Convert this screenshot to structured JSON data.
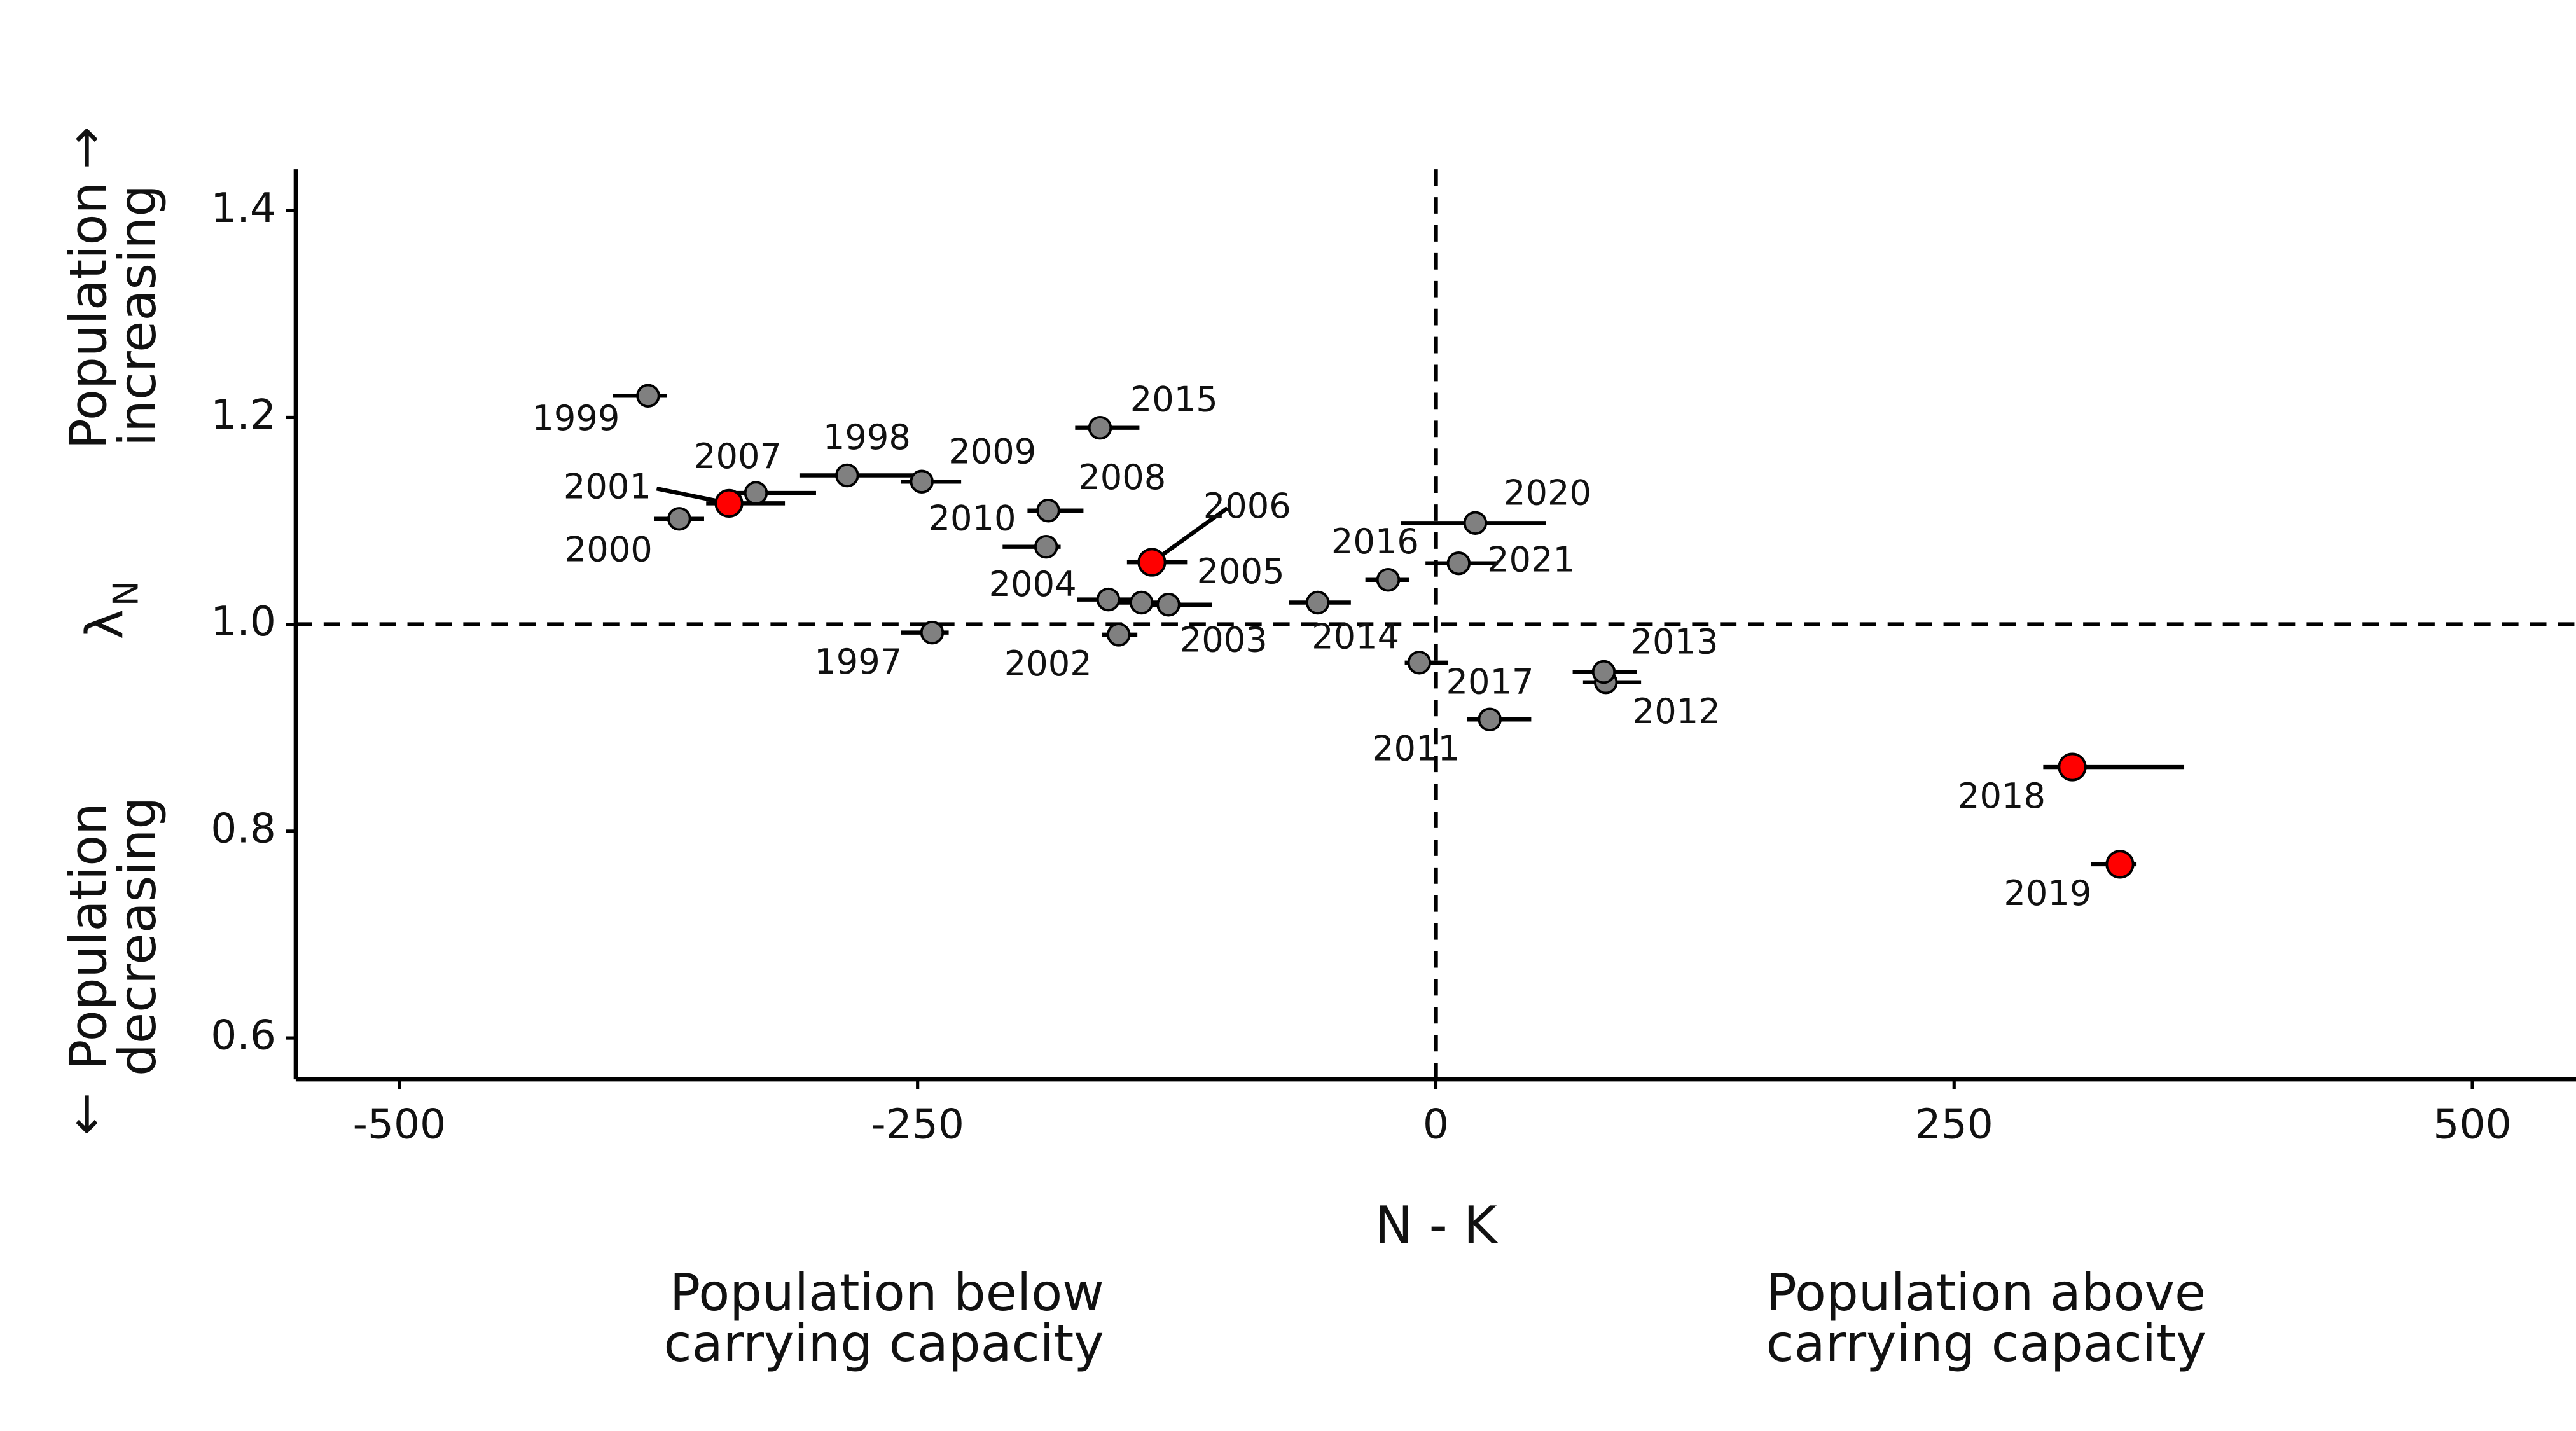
{
  "chart_data": {
    "type": "scatter",
    "x_label": "N - K",
    "y_label": "λ",
    "y_label_subscript": "N",
    "upper_annotation": {
      "arrow": "→",
      "lines": [
        "Population",
        "increasing"
      ]
    },
    "lower_annotation": {
      "arrow": "←",
      "lines": [
        "Population",
        "decreasing"
      ]
    },
    "below_annotation": [
      "Population below",
      "carrying capacity"
    ],
    "above_annotation": [
      "Population above",
      "carrying capacity"
    ],
    "xlim": [
      -550,
      550
    ],
    "ylim": [
      0.56,
      1.44
    ],
    "xticks": [
      -500,
      -250,
      0,
      250,
      500
    ],
    "yticks": [
      0.6,
      0.8,
      {
        "value": 1,
        "label": "1.0"
      },
      1.2,
      1.4
    ],
    "reference_lines": {
      "x": 0,
      "y": 1
    },
    "point_labels": [
      "1997",
      "1998",
      "1999",
      "2000",
      "2001",
      "2002",
      "2003",
      "2004",
      "2005",
      "2006",
      "2007",
      "2008",
      "2009",
      "2010",
      "2011",
      "2012",
      "2013",
      "2014",
      "2015",
      "2016",
      "2017",
      "2018",
      "2019",
      "2020",
      "2021"
    ],
    "x": [
      -243,
      -284,
      -380,
      -365,
      -341,
      -153,
      -142,
      -158,
      -129,
      -137,
      -328,
      -187,
      -248,
      -188,
      26,
      82,
      81,
      -57,
      -162,
      -23,
      -8,
      307,
      330,
      19,
      11
    ],
    "values": [
      0.992,
      1.144,
      1.221,
      1.102,
      1.117,
      0.99,
      1.021,
      1.024,
      1.019,
      1.06,
      1.127,
      1.11,
      1.138,
      1.075,
      0.908,
      0.944,
      0.954,
      1.021,
      1.19,
      1.043,
      0.963,
      0.862,
      0.768,
      1.098,
      1.059
    ],
    "xmin": [
      -258,
      -307,
      -397,
      -377,
      -352,
      -161,
      -157,
      -173,
      -146,
      -149,
      -340,
      -197,
      -258,
      -209,
      15,
      71,
      66,
      -71,
      -174,
      -34,
      -15,
      293,
      316,
      -17,
      -5
    ],
    "xmax": [
      -235,
      -251,
      -371,
      -353,
      -314,
      -144,
      -126,
      -146,
      -108,
      -120,
      -299,
      -170,
      -229,
      -181,
      46,
      99,
      97,
      -41,
      -143,
      -13,
      6,
      361,
      338,
      53,
      30
    ],
    "colors": [
      "#808080",
      "#808080",
      "#808080",
      "#808080",
      "#ff0000",
      "#808080",
      "#808080",
      "#808080",
      "#808080",
      "#ff0000",
      "#808080",
      "#808080",
      "#808080",
      "#808080",
      "#808080",
      "#808080",
      "#808080",
      "#808080",
      "#808080",
      "#808080",
      "#808080",
      "#ff0000",
      "#ff0000",
      "#808080",
      "#808080"
    ]
  }
}
